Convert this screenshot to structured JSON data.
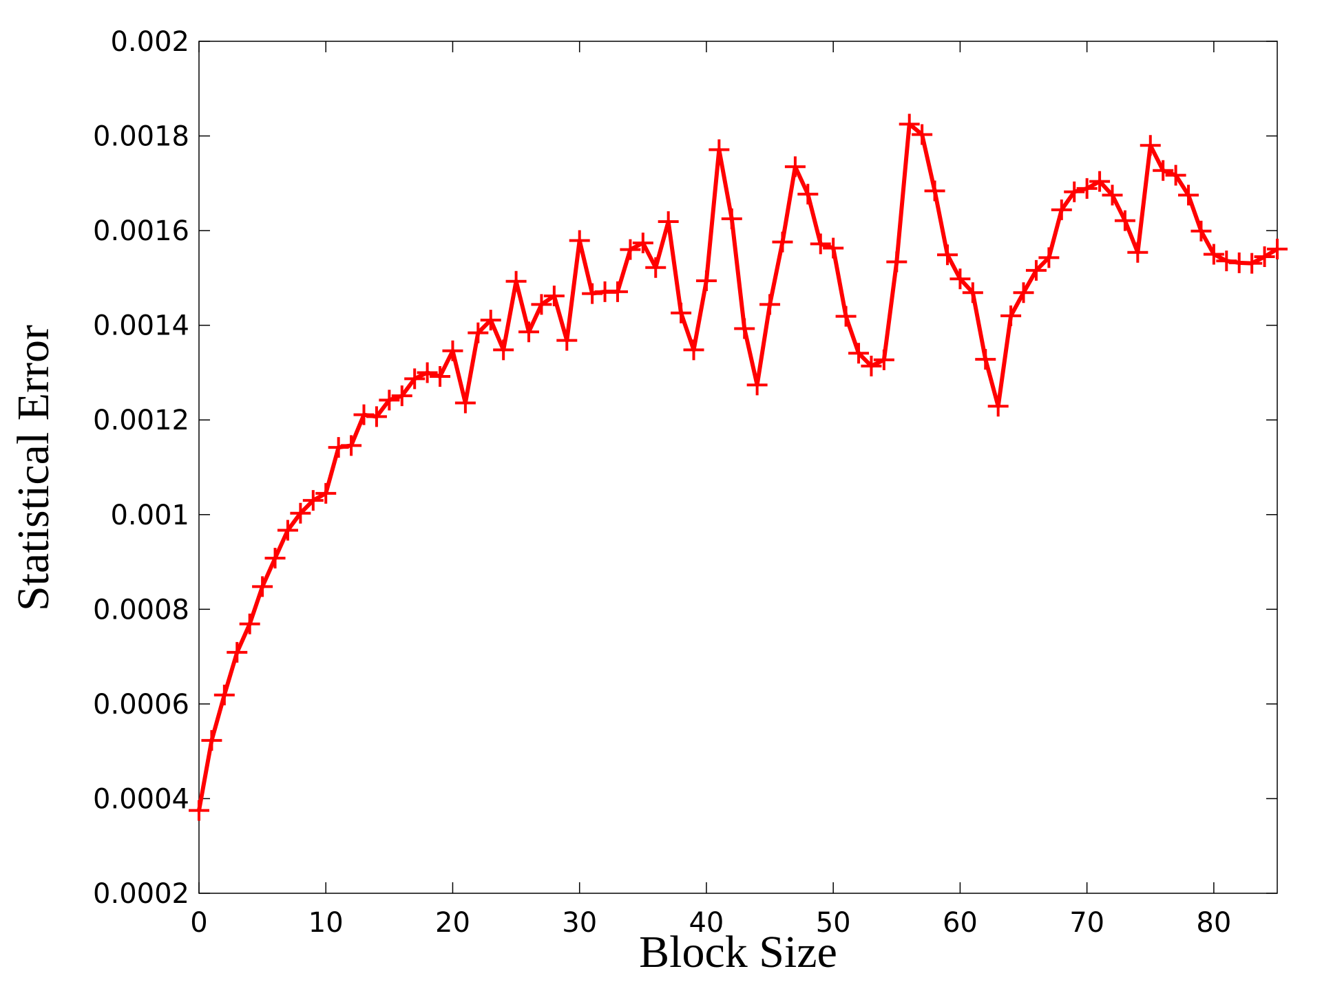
{
  "chart_data": {
    "type": "line",
    "x_label": "Block Size",
    "y_label": "Statistical Error",
    "xlim": [
      0,
      85
    ],
    "ylim": [
      0.0002,
      0.002
    ],
    "xticks": [
      0,
      10,
      20,
      30,
      40,
      50,
      60,
      70,
      80
    ],
    "yticks": [
      0.0002,
      0.0004,
      0.0006,
      0.0008,
      0.001,
      0.0012,
      0.0014,
      0.0016,
      0.0018,
      0.002
    ],
    "grid": false,
    "x": [
      0,
      1,
      2,
      3,
      4,
      5,
      6,
      7,
      8,
      9,
      10,
      11,
      12,
      13,
      14,
      15,
      16,
      17,
      18,
      19,
      20,
      21,
      22,
      23,
      24,
      25,
      26,
      27,
      28,
      29,
      30,
      31,
      32,
      33,
      34,
      35,
      36,
      37,
      38,
      39,
      40,
      41,
      42,
      43,
      44,
      45,
      46,
      47,
      48,
      49,
      50,
      51,
      52,
      53,
      54,
      55,
      56,
      57,
      58,
      59,
      60,
      61,
      62,
      63,
      64,
      65,
      66,
      67,
      68,
      69,
      70,
      71,
      72,
      73,
      74,
      75,
      76,
      77,
      78,
      79,
      80,
      81,
      82,
      83,
      84,
      85
    ],
    "series": [
      {
        "color": "#ff0000",
        "marker": "plus",
        "values": [
          0.000375,
          0.000523,
          0.000619,
          0.000709,
          0.000769,
          0.000848,
          0.000908,
          0.000967,
          0.001003,
          0.00103,
          0.001045,
          0.001142,
          0.001146,
          0.001211,
          0.001207,
          0.001242,
          0.001251,
          0.001287,
          0.0013,
          0.001292,
          0.001346,
          0.001236,
          0.001384,
          0.001411,
          0.001348,
          0.001493,
          0.001386,
          0.001444,
          0.001462,
          0.001368,
          0.001579,
          0.001467,
          0.001471,
          0.001471,
          0.00156,
          0.001574,
          0.001522,
          0.001619,
          0.001426,
          0.001348,
          0.001494,
          0.001771,
          0.001625,
          0.001393,
          0.001274,
          0.001444,
          0.001576,
          0.001735,
          0.001677,
          0.001572,
          0.001563,
          0.001419,
          0.001341,
          0.001314,
          0.001327,
          0.001534,
          0.001825,
          0.001803,
          0.001684,
          0.001549,
          0.001498,
          0.001469,
          0.001328,
          0.001229,
          0.00142,
          0.001469,
          0.001516,
          0.001543,
          0.001644,
          0.001682,
          0.001689,
          0.001704,
          0.001675,
          0.001621,
          0.001554,
          0.00178,
          0.001727,
          0.001717,
          0.001675,
          0.001599,
          0.00155,
          0.001536,
          0.001532,
          0.001531,
          0.001545,
          0.001561
        ]
      }
    ]
  }
}
